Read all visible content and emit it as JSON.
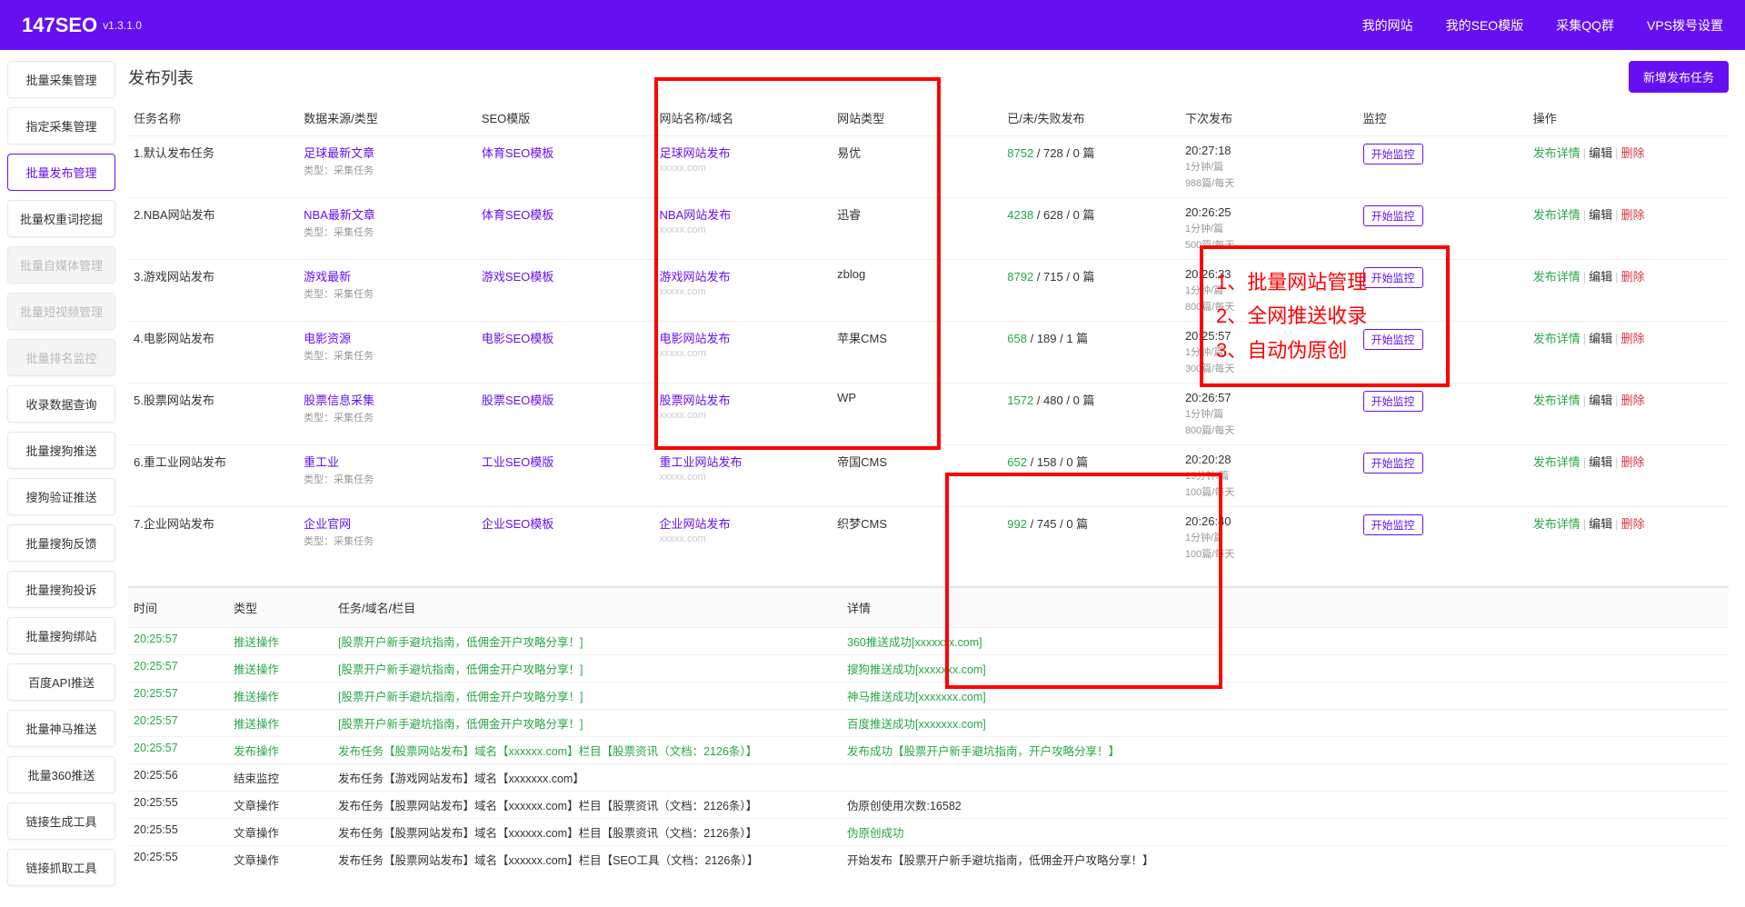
{
  "header": {
    "logo": "147SEO",
    "version": "v1.3.1.0",
    "nav": [
      "我的网站",
      "我的SEO模版",
      "采集QQ群",
      "VPS拨号设置"
    ]
  },
  "sidebar": [
    {
      "label": "批量采集管理"
    },
    {
      "label": "指定采集管理"
    },
    {
      "label": "批量发布管理",
      "active": true
    },
    {
      "label": "批量权重词挖掘"
    },
    {
      "label": "批量自媒体管理",
      "disabled": true
    },
    {
      "label": "批量短视频管理",
      "disabled": true
    },
    {
      "label": "批量排名监控",
      "disabled": true
    },
    {
      "label": "收录数据查询"
    },
    {
      "label": "批量搜狗推送"
    },
    {
      "label": "搜狗验证推送"
    },
    {
      "label": "批量搜狗反馈"
    },
    {
      "label": "批量搜狗投诉"
    },
    {
      "label": "批量搜狗绑站"
    },
    {
      "label": "百度API推送"
    },
    {
      "label": "批量神马推送"
    },
    {
      "label": "批量360推送"
    },
    {
      "label": "链接生成工具"
    },
    {
      "label": "链接抓取工具"
    }
  ],
  "page": {
    "title": "发布列表",
    "newBtn": "新增发布任务"
  },
  "cols": [
    "任务名称",
    "数据来源/类型",
    "SEO模版",
    "网站名称/域名",
    "网站类型",
    "已/未/失败发布",
    "下次发布",
    "监控",
    "操作"
  ],
  "subType": "类型：采集任务",
  "monBtn": "开始监控",
  "ops": {
    "detail": "发布详情",
    "edit": "编辑",
    "del": "删除"
  },
  "rows": [
    {
      "name": "1.默认发布任务",
      "src": "足球最新文章",
      "tpl": "体育SEO模板",
      "site": "足球网站发布",
      "url": "xxxxx.com",
      "type": "易优",
      "p1": "8752",
      "p2": "728 / 0 篇",
      "next": "20:27:18",
      "n2": "1分钟/篇",
      "n3": "988篇/每天"
    },
    {
      "name": "2.NBA网站发布",
      "src": "NBA最新文章",
      "tpl": "体育SEO模板",
      "site": "NBA网站发布",
      "url": "xxxxx.com",
      "type": "迅睿",
      "p1": "4238",
      "p2": "628 / 0 篇",
      "next": "20:26:25",
      "n2": "1分钟/篇",
      "n3": "500篇/每天"
    },
    {
      "name": "3.游戏网站发布",
      "src": "游戏最新",
      "tpl": "游戏SEO模板",
      "site": "游戏网站发布",
      "url": "xxxxx.com",
      "type": "zblog",
      "p1": "8792",
      "p2": "715 / 0 篇",
      "next": "20:26:33",
      "n2": "1分钟/篇",
      "n3": "800篇/每天"
    },
    {
      "name": "4.电影网站发布",
      "src": "电影资源",
      "tpl": "电影SEO模板",
      "site": "电影网站发布",
      "url": "xxxxx.com",
      "type": "苹果CMS",
      "p1": "658",
      "p2": "189 / 1 篇",
      "next": "20:25:57",
      "n2": "1分钟/篇",
      "n3": "300篇/每天"
    },
    {
      "name": "5.股票网站发布",
      "src": "股票信息采集",
      "tpl": "股票SEO模版",
      "site": "股票网站发布",
      "url": "xxxxx.com",
      "type": "WP",
      "p1": "1572",
      "p2": "480 / 0 篇",
      "next": "20:26:57",
      "n2": "1分钟/篇",
      "n3": "800篇/每天"
    },
    {
      "name": "6.重工业网站发布",
      "src": "重工业",
      "tpl": "工业SEO模版",
      "site": "重工业网站发布",
      "url": "xxxxx.com",
      "type": "帝国CMS",
      "p1": "652",
      "p2": "158 / 0 篇",
      "next": "20:20:28",
      "n2": "15分钟/篇",
      "n3": "100篇/每天"
    },
    {
      "name": "7.企业网站发布",
      "src": "企业官网",
      "tpl": "企业SEO模板",
      "site": "企业网站发布",
      "url": "xxxxx.com",
      "type": "织梦CMS",
      "p1": "992",
      "p2": "745 / 0 篇",
      "next": "20:26:40",
      "n2": "1分钟/篇",
      "n3": "100篇/每天"
    }
  ],
  "callout": [
    "1、批量网站管理",
    "2、全网推送收录",
    "3、自动伪原创"
  ],
  "logCols": [
    "时间",
    "类型",
    "任务/域名/栏目",
    "详情"
  ],
  "logs": [
    {
      "t": "20:25:57",
      "y": "推送操作",
      "m": "[股票开户新手避坑指南，低佣金开户攻略分享！]",
      "d": "360推送成功[xxxxxxx.com]",
      "g": true
    },
    {
      "t": "20:25:57",
      "y": "推送操作",
      "m": "[股票开户新手避坑指南，低佣金开户攻略分享！]",
      "d": "搜狗推送成功[xxxxxxx.com]",
      "g": true
    },
    {
      "t": "20:25:57",
      "y": "推送操作",
      "m": "[股票开户新手避坑指南，低佣金开户攻略分享！]",
      "d": "神马推送成功[xxxxxxx.com]",
      "g": true
    },
    {
      "t": "20:25:57",
      "y": "推送操作",
      "m": "[股票开户新手避坑指南，低佣金开户攻略分享！]",
      "d": "百度推送成功[xxxxxxx.com]",
      "g": true
    },
    {
      "t": "20:25:57",
      "y": "发布操作",
      "m": "发布任务【股票网站发布】域名【xxxxxx.com】栏目【股票资讯（文档：2126条）】",
      "d": "发布成功【股票开户新手避坑指南，开户攻略分享！】",
      "g": true
    },
    {
      "t": "20:25:56",
      "y": "结束监控",
      "m": "发布任务【游戏网站发布】域名【xxxxxxx.com】",
      "d": "",
      "g": false
    },
    {
      "t": "20:25:55",
      "y": "文章操作",
      "m": "发布任务【股票网站发布】域名【xxxxxx.com】栏目【股票资讯（文档：2126条）】",
      "d": "伪原创使用次数:16582",
      "g": false
    },
    {
      "t": "20:25:55",
      "y": "文章操作",
      "m": "发布任务【股票网站发布】域名【xxxxxx.com】栏目【股票资讯（文档：2126条）】",
      "d": "伪原创成功",
      "g2": true,
      "g": false
    },
    {
      "t": "20:25:55",
      "y": "文章操作",
      "m": "发布任务【股票网站发布】域名【xxxxxx.com】栏目【SEO工具（文档：2126条）】",
      "d": "开始发布【股票开户新手避坑指南，低佣金开户攻略分享！】",
      "g": false
    }
  ]
}
